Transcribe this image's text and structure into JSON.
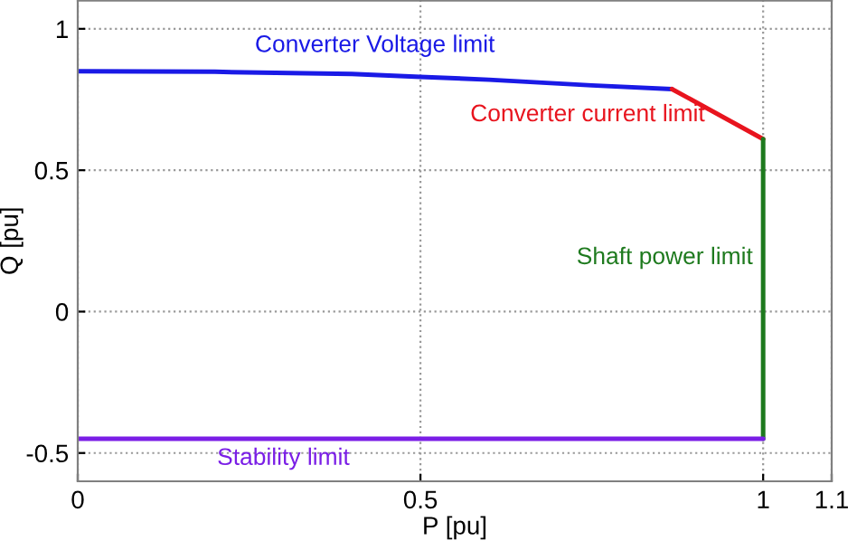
{
  "chart_data": {
    "type": "line",
    "xlabel": "P [pu]",
    "ylabel": "Q [pu]",
    "xlim": [
      0,
      1.1
    ],
    "xticks": [
      0,
      0.5,
      1,
      1.1
    ],
    "ylim": [
      -0.6,
      1.1
    ],
    "yticks": [
      -0.5,
      0,
      0.5,
      1
    ],
    "grid": true,
    "line_style": "solid",
    "marker": "none",
    "series": [
      {
        "name": "Converter Voltage limit",
        "color": "#1a1ae6",
        "x": [
          0,
          0.2,
          0.4,
          0.5,
          0.6,
          0.75,
          0.867
        ],
        "values": [
          0.85,
          0.848,
          0.84,
          0.83,
          0.82,
          0.8,
          0.787
        ]
      },
      {
        "name": "Converter current limit",
        "color": "#e8141e",
        "x": [
          0.867,
          1
        ],
        "values": [
          0.787,
          0.61
        ]
      },
      {
        "name": "Shaft power limit",
        "color": "#1e7a1e",
        "x": [
          1,
          1
        ],
        "values": [
          0.61,
          -0.45
        ]
      },
      {
        "name": "Stability limit",
        "color": "#7a1ee6",
        "x": [
          0,
          1
        ],
        "values": [
          -0.45,
          -0.45
        ]
      }
    ]
  }
}
